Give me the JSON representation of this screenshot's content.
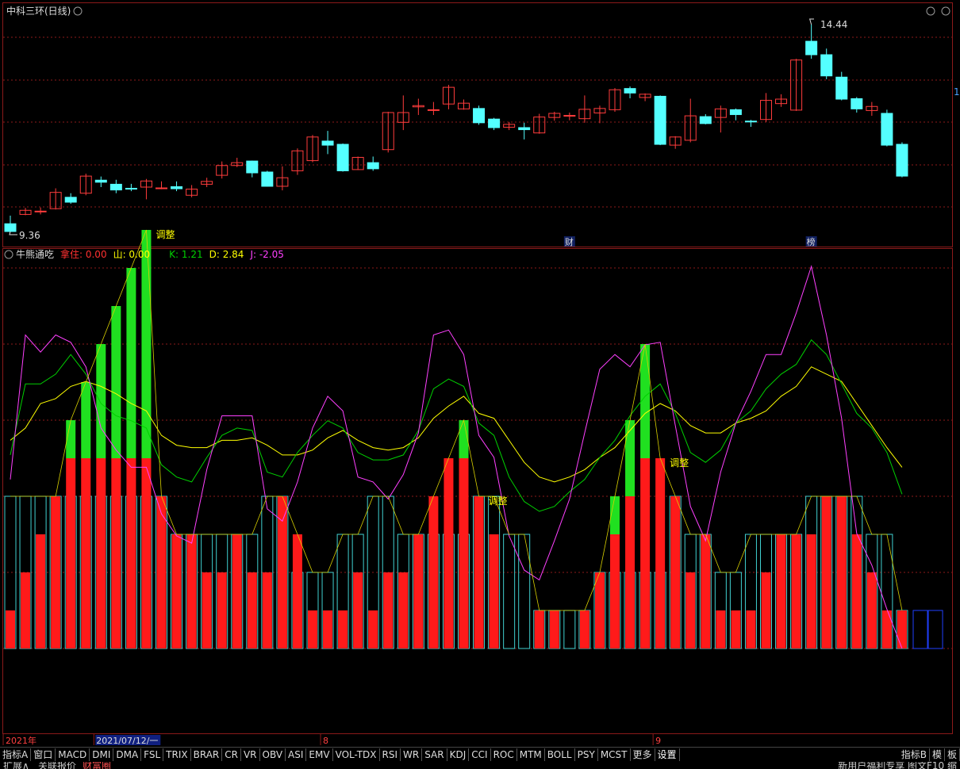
{
  "header": {
    "stock_title": "中科三环(日线)",
    "max_label": "14.44",
    "min_label": "9.36",
    "right_marker": "1"
  },
  "event_markers": [
    {
      "label": "财",
      "date_index": 37
    },
    {
      "label": "榜",
      "date_index": 53
    }
  ],
  "indicator": {
    "name": "牛熊通吃",
    "params": [
      {
        "label": "拿住:",
        "value": "0.00",
        "color": "#ff3030"
      },
      {
        "label": "山:",
        "value": "0.00",
        "color": "#ffff00"
      },
      {
        "label": "K:",
        "value": "1.21",
        "color": "#00d000"
      },
      {
        "label": "D:",
        "value": "2.84",
        "color": "#ffff00"
      },
      {
        "label": "J:",
        "value": "-2.05",
        "color": "#ff40ff"
      }
    ],
    "annotation_text": "调整",
    "annotation_indices": [
      9,
      31,
      43
    ]
  },
  "date_axis": {
    "labels": [
      {
        "text": "2021年",
        "index": 0
      },
      {
        "text": "2021/07/12/一",
        "index": 6,
        "highlight": true
      },
      {
        "text": "8",
        "index": 21
      },
      {
        "text": "9",
        "index": 43
      }
    ]
  },
  "tabs": [
    "指标A",
    "窗口",
    "MACD",
    "DMI",
    "DMA",
    "FSL",
    "TRIX",
    "BRAR",
    "CR",
    "VR",
    "OBV",
    "ASI",
    "EMV",
    "VOL-TDX",
    "RSI",
    "WR",
    "SAR",
    "KDJ",
    "CCI",
    "ROC",
    "MTM",
    "BOLL",
    "PSY",
    "MCST",
    "更多",
    "设置"
  ],
  "tabs_right": [
    "指标B",
    "模",
    "板"
  ],
  "statusbar": {
    "left": [
      "扩展∧",
      "关联报价",
      "财富圈"
    ],
    "right": "新用户福利专享 图文F10 缩"
  },
  "colors": {
    "up": "#ff3c3c",
    "down": "#54ffff",
    "grid": "#8b1a1a",
    "k_line": "#00d000",
    "d_line": "#ffff00",
    "j_line": "#ff40ff",
    "red_bar": "#ff1a1a",
    "green_bar": "#20e020",
    "cyan_bar": "#40d0d0"
  },
  "chart_data": {
    "type": "candlestick+indicator",
    "candles": [
      [
        9.55,
        9.36,
        9.36,
        9.75
      ],
      [
        9.78,
        9.88,
        9.76,
        9.94
      ],
      [
        9.85,
        9.86,
        9.78,
        9.95
      ],
      [
        9.92,
        10.32,
        9.9,
        10.42
      ],
      [
        10.2,
        10.08,
        10.04,
        10.3
      ],
      [
        10.3,
        10.72,
        10.25,
        10.78
      ],
      [
        10.62,
        10.57,
        10.45,
        10.71
      ],
      [
        10.52,
        10.38,
        10.3,
        10.63
      ],
      [
        10.42,
        10.4,
        10.35,
        10.53
      ],
      [
        10.45,
        10.6,
        10.15,
        10.65
      ],
      [
        10.43,
        10.43,
        10.4,
        10.59
      ],
      [
        10.46,
        10.41,
        10.35,
        10.59
      ],
      [
        10.25,
        10.4,
        10.2,
        10.5
      ],
      [
        10.52,
        10.59,
        10.45,
        10.68
      ],
      [
        10.74,
        10.98,
        10.66,
        11.08
      ],
      [
        10.98,
        11.05,
        10.94,
        11.17
      ],
      [
        11.09,
        10.8,
        10.69,
        11.1
      ],
      [
        10.82,
        10.47,
        10.46,
        10.85
      ],
      [
        10.47,
        10.68,
        10.37,
        10.96
      ],
      [
        10.85,
        11.34,
        10.75,
        11.4
      ],
      [
        11.1,
        11.68,
        11.06,
        11.73
      ],
      [
        11.58,
        11.48,
        11.26,
        11.83
      ],
      [
        11.5,
        10.85,
        10.83,
        11.52
      ],
      [
        10.88,
        11.18,
        10.87,
        11.2
      ],
      [
        11.05,
        10.9,
        10.85,
        11.2
      ],
      [
        11.37,
        12.28,
        11.3,
        12.3
      ],
      [
        12.04,
        12.28,
        11.85,
        12.7
      ],
      [
        12.42,
        12.45,
        12.22,
        12.62
      ],
      [
        12.35,
        12.35,
        12.22,
        12.54
      ],
      [
        12.49,
        12.9,
        12.36,
        12.96
      ],
      [
        12.37,
        12.51,
        12.35,
        12.6
      ],
      [
        12.38,
        12.03,
        11.98,
        12.45
      ],
      [
        12.12,
        11.91,
        11.85,
        12.15
      ],
      [
        11.92,
        11.99,
        11.85,
        12.05
      ],
      [
        11.91,
        11.86,
        11.62,
        12.03
      ],
      [
        11.78,
        12.17,
        11.76,
        12.25
      ],
      [
        12.16,
        12.26,
        12.08,
        12.3
      ],
      [
        12.2,
        12.21,
        12.09,
        12.28
      ],
      [
        12.13,
        12.36,
        12.03,
        12.7
      ],
      [
        12.27,
        12.38,
        12.02,
        12.45
      ],
      [
        12.35,
        12.84,
        12.3,
        12.88
      ],
      [
        12.87,
        12.76,
        12.63,
        12.92
      ],
      [
        12.65,
        12.73,
        12.56,
        12.75
      ],
      [
        12.68,
        11.5,
        11.48,
        12.7
      ],
      [
        11.48,
        11.68,
        11.39,
        11.7
      ],
      [
        11.6,
        12.2,
        11.55,
        12.62
      ],
      [
        12.18,
        12.01,
        11.99,
        12.24
      ],
      [
        12.16,
        12.37,
        11.79,
        12.45
      ],
      [
        12.35,
        12.23,
        12.09,
        12.38
      ],
      [
        12.07,
        12.05,
        11.93,
        12.1
      ],
      [
        12.11,
        12.58,
        12.05,
        12.76
      ],
      [
        12.5,
        12.61,
        12.42,
        12.73
      ],
      [
        12.34,
        13.57,
        12.32,
        13.6
      ],
      [
        14.03,
        13.7,
        13.6,
        14.44
      ],
      [
        13.7,
        13.18,
        13.1,
        13.85
      ],
      [
        13.15,
        12.61,
        12.58,
        13.28
      ],
      [
        12.62,
        12.37,
        12.28,
        12.66
      ],
      [
        12.33,
        12.43,
        12.2,
        12.54
      ],
      [
        12.26,
        11.48,
        11.45,
        12.35
      ],
      [
        11.5,
        10.72,
        10.69,
        11.55
      ]
    ],
    "kdj": {
      "k": [
        49,
        78,
        78,
        82,
        90,
        82,
        70,
        65,
        63,
        60,
        45,
        40,
        38,
        48,
        57,
        60,
        59,
        42,
        40,
        50,
        57,
        63,
        60,
        50,
        47,
        47,
        49,
        59,
        76,
        80,
        77,
        62,
        57,
        40,
        30,
        26,
        28,
        34,
        39,
        48,
        55,
        65,
        73,
        78,
        66,
        50,
        46,
        51,
        62,
        67,
        76,
        82,
        86,
        96,
        90,
        78,
        66,
        60,
        50,
        33
      ],
      "d": [
        55,
        60,
        70,
        72,
        77,
        79,
        77,
        74,
        70,
        67,
        57,
        53,
        52,
        52,
        55,
        55,
        56,
        53,
        49,
        49,
        51,
        56,
        59,
        55,
        52,
        51,
        52,
        56,
        64,
        69,
        73,
        66,
        64,
        55,
        46,
        40,
        38,
        40,
        43,
        48,
        52,
        59,
        66,
        70,
        67,
        61,
        58,
        58,
        62,
        64,
        67,
        73,
        77,
        85,
        82,
        79,
        70,
        61,
        52,
        44
      ],
      "j": [
        39,
        98,
        91,
        98,
        95,
        85,
        60,
        51,
        44,
        44,
        25,
        16,
        13,
        43,
        65,
        65,
        65,
        27,
        22,
        38,
        60,
        73,
        67,
        40,
        38,
        31,
        41,
        58,
        98,
        100,
        90,
        57,
        48,
        16,
        2,
        -2,
        14,
        31,
        58,
        84,
        90,
        85,
        94,
        95,
        61,
        28,
        14,
        42,
        62,
        75,
        90,
        90,
        107,
        126,
        98,
        64,
        17,
        4,
        -14,
        -30
      ]
    },
    "hold_levels": [
      1,
      2,
      3,
      4,
      5,
      5,
      5,
      5,
      5,
      5,
      4,
      3,
      3,
      2,
      2,
      3,
      2,
      2,
      4,
      3,
      1,
      1,
      1,
      2,
      1,
      2,
      2,
      3,
      4,
      5,
      5,
      4,
      3,
      0,
      0,
      1,
      1,
      0,
      1,
      2,
      3,
      4,
      5,
      5,
      4,
      2,
      3,
      1,
      1,
      1,
      2,
      3,
      3,
      3,
      4,
      4,
      3,
      2,
      1,
      1
    ],
    "peak_levels": [
      0,
      0,
      0,
      0,
      1,
      2,
      3,
      4,
      5,
      6,
      0,
      0,
      0,
      0,
      0,
      0,
      0,
      0,
      0,
      0,
      0,
      0,
      0,
      0,
      0,
      0,
      0,
      0,
      0,
      0,
      1,
      0,
      0,
      0,
      0,
      0,
      0,
      0,
      0,
      0,
      1,
      2,
      3,
      0,
      0,
      0,
      0,
      0,
      0,
      0,
      0,
      0,
      0,
      0,
      0,
      0,
      0,
      0,
      0,
      0
    ],
    "shan_levels": [
      4,
      4,
      4,
      4,
      4,
      4,
      4,
      4,
      4,
      4,
      4,
      3,
      3,
      3,
      3,
      3,
      3,
      4,
      4,
      2,
      2,
      2,
      3,
      3,
      4,
      4,
      3,
      3,
      3,
      3,
      3,
      4,
      4,
      3,
      3,
      1,
      1,
      1,
      1,
      2,
      2,
      2,
      2,
      2,
      4,
      3,
      3,
      2,
      2,
      3,
      3,
      3,
      3,
      4,
      4,
      4,
      4,
      3,
      3,
      1
    ],
    "empty_bars": 2
  }
}
